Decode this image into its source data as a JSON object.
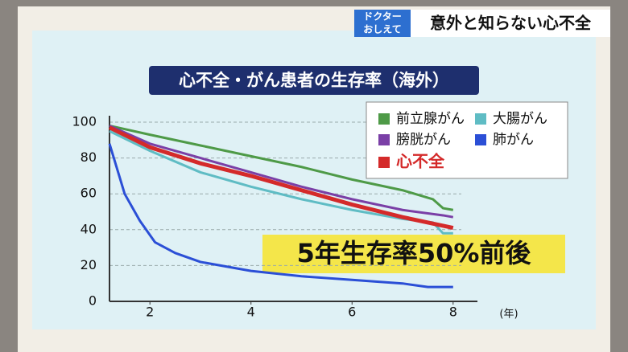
{
  "overlay": {
    "logo_top": "ドクター",
    "logo_bottom": "おしえて",
    "topic": "意外と知らない心不全"
  },
  "chart_data": {
    "type": "line",
    "title": "心不全・がん患者の生存率（海外）",
    "x_unit": "(年)",
    "xlim": [
      1.2,
      8.8
    ],
    "xticks": [
      2,
      4,
      6,
      8
    ],
    "ylim": [
      0,
      100
    ],
    "yticks": [
      0,
      20,
      40,
      60,
      80,
      100
    ],
    "grid": true,
    "series": [
      {
        "name": "前立腺がん",
        "color": "#4e9a47",
        "x": [
          1.2,
          2,
          3,
          4,
          5,
          6,
          7,
          7.6,
          7.8,
          8
        ],
        "values": [
          98,
          93,
          87,
          81,
          75,
          68,
          62,
          57,
          52,
          51
        ]
      },
      {
        "name": "大腸がん",
        "color": "#5fbcc4",
        "x": [
          1.2,
          2,
          3,
          4,
          5,
          6,
          7,
          7.6,
          7.8,
          8
        ],
        "values": [
          95,
          84,
          72,
          64,
          57,
          51,
          46,
          44,
          38,
          38
        ]
      },
      {
        "name": "膀胱がん",
        "color": "#7a3fa6",
        "x": [
          1.2,
          2,
          3,
          4,
          5,
          6,
          7,
          7.8,
          8
        ],
        "values": [
          98,
          88,
          80,
          72,
          64,
          57,
          51,
          48,
          47
        ]
      },
      {
        "name": "肺がん",
        "color": "#2b4fd6",
        "x": [
          1.2,
          1.5,
          1.8,
          2.1,
          2.5,
          3,
          4,
          5,
          6,
          7,
          7.5,
          8
        ],
        "values": [
          88,
          60,
          45,
          33,
          27,
          22,
          17,
          14,
          12,
          10,
          8,
          8
        ]
      },
      {
        "name": "心不全",
        "color": "#d42a2a",
        "x": [
          1.2,
          2,
          3,
          4,
          5,
          6,
          7,
          8
        ],
        "values": [
          97,
          86,
          77,
          70,
          62,
          54,
          47,
          41
        ]
      }
    ],
    "annotation": "5年生存率50%前後"
  }
}
